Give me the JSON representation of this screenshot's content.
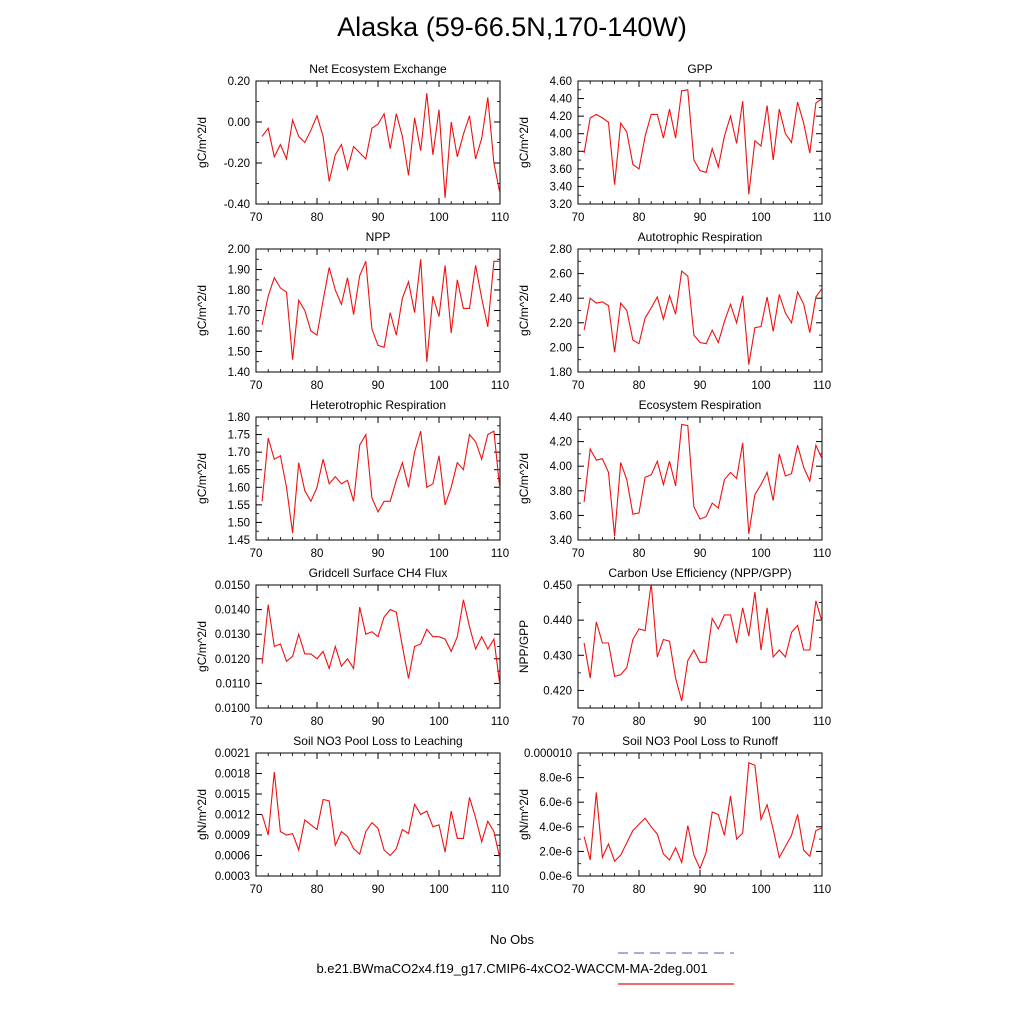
{
  "title": "Alaska (59-66.5N,170-140W)",
  "series_color": "#ee1111",
  "legend": {
    "obs_label": "No Obs",
    "obs_color": "#7777cc",
    "model_label": "b.e21.BWmaCO2x4.f19_g17.CMIP6-4xCO2-WACCM-MA-2deg.001",
    "model_color": "#ee1111"
  },
  "chart_data": [
    {
      "type": "line",
      "title": "Net Ecosystem Exchange",
      "ylabel": "gC/m^2/d",
      "xlim": [
        70,
        110
      ],
      "ylim": [
        -0.4,
        0.2
      ],
      "xticks": [
        70,
        80,
        90,
        100,
        110
      ],
      "xtick_labels": [
        "70",
        "80",
        "90",
        "100",
        "110"
      ],
      "yticks": [
        -0.4,
        -0.2,
        0.0,
        0.2
      ],
      "ytick_labels": [
        "-0.40",
        "-0.20",
        "0.00",
        "0.20"
      ],
      "x": [
        71,
        72,
        73,
        74,
        75,
        76,
        77,
        78,
        79,
        80,
        81,
        82,
        83,
        84,
        85,
        86,
        87,
        88,
        89,
        90,
        91,
        92,
        93,
        94,
        95,
        96,
        97,
        98,
        99,
        100,
        101,
        102,
        103,
        104,
        105,
        106,
        107,
        108,
        109,
        110
      ],
      "y": [
        -0.07,
        -0.03,
        -0.17,
        -0.11,
        -0.18,
        0.01,
        -0.07,
        -0.1,
        -0.04,
        0.03,
        -0.07,
        -0.29,
        -0.16,
        -0.11,
        -0.23,
        -0.12,
        -0.15,
        -0.18,
        -0.03,
        -0.01,
        0.04,
        -0.13,
        0.04,
        -0.07,
        -0.26,
        0.02,
        -0.14,
        0.14,
        -0.16,
        0.06,
        -0.37,
        0.0,
        -0.17,
        -0.06,
        0.03,
        -0.18,
        -0.08,
        0.12,
        -0.2,
        -0.35
      ]
    },
    {
      "type": "line",
      "title": "GPP",
      "ylabel": "gC/m^2/d",
      "xlim": [
        70,
        110
      ],
      "ylim": [
        3.2,
        4.6
      ],
      "xticks": [
        70,
        80,
        90,
        100,
        110
      ],
      "xtick_labels": [
        "70",
        "80",
        "90",
        "100",
        "110"
      ],
      "yticks": [
        3.2,
        3.4,
        3.6,
        3.8,
        4.0,
        4.2,
        4.4,
        4.6
      ],
      "ytick_labels": [
        "3.20",
        "3.40",
        "3.60",
        "3.80",
        "4.00",
        "4.20",
        "4.40",
        "4.60"
      ],
      "x": [
        71,
        72,
        73,
        74,
        75,
        76,
        77,
        78,
        79,
        80,
        81,
        82,
        83,
        84,
        85,
        86,
        87,
        88,
        89,
        90,
        91,
        92,
        93,
        94,
        95,
        96,
        97,
        98,
        99,
        100,
        101,
        102,
        103,
        104,
        105,
        106,
        107,
        108,
        109,
        110
      ],
      "y": [
        3.78,
        4.18,
        4.22,
        4.18,
        4.13,
        3.42,
        4.12,
        4.02,
        3.65,
        3.6,
        3.97,
        4.22,
        4.22,
        3.95,
        4.28,
        3.95,
        4.49,
        4.5,
        3.7,
        3.58,
        3.56,
        3.83,
        3.62,
        3.97,
        4.2,
        3.89,
        4.37,
        3.31,
        3.92,
        3.86,
        4.32,
        3.7,
        4.28,
        4.0,
        3.9,
        4.36,
        4.12,
        3.78,
        4.35,
        4.4
      ]
    },
    {
      "type": "line",
      "title": "NPP",
      "ylabel": "gC/m^2/d",
      "xlim": [
        70,
        110
      ],
      "ylim": [
        1.4,
        2.0
      ],
      "xticks": [
        70,
        80,
        90,
        100,
        110
      ],
      "xtick_labels": [
        "70",
        "80",
        "90",
        "100",
        "110"
      ],
      "yticks": [
        1.4,
        1.5,
        1.6,
        1.7,
        1.8,
        1.9,
        2.0
      ],
      "ytick_labels": [
        "1.40",
        "1.50",
        "1.60",
        "1.70",
        "1.80",
        "1.90",
        "2.00"
      ],
      "x": [
        71,
        72,
        73,
        74,
        75,
        76,
        77,
        78,
        79,
        80,
        81,
        82,
        83,
        84,
        85,
        86,
        87,
        88,
        89,
        90,
        91,
        92,
        93,
        94,
        95,
        96,
        97,
        98,
        99,
        100,
        101,
        102,
        103,
        104,
        105,
        106,
        107,
        108,
        109,
        110
      ],
      "y": [
        1.63,
        1.77,
        1.86,
        1.81,
        1.79,
        1.46,
        1.75,
        1.7,
        1.6,
        1.58,
        1.75,
        1.91,
        1.8,
        1.73,
        1.86,
        1.68,
        1.87,
        1.94,
        1.61,
        1.53,
        1.52,
        1.69,
        1.58,
        1.76,
        1.84,
        1.69,
        1.95,
        1.45,
        1.77,
        1.67,
        1.92,
        1.59,
        1.85,
        1.71,
        1.71,
        1.92,
        1.76,
        1.62,
        1.94,
        1.94
      ]
    },
    {
      "type": "line",
      "title": "Autotrophic Respiration",
      "ylabel": "gC/m^2/d",
      "xlim": [
        70,
        110
      ],
      "ylim": [
        1.8,
        2.8
      ],
      "xticks": [
        70,
        80,
        90,
        100,
        110
      ],
      "xtick_labels": [
        "70",
        "80",
        "90",
        "100",
        "110"
      ],
      "yticks": [
        1.8,
        2.0,
        2.2,
        2.4,
        2.6,
        2.8
      ],
      "ytick_labels": [
        "1.80",
        "2.00",
        "2.20",
        "2.40",
        "2.60",
        "2.80"
      ],
      "x": [
        71,
        72,
        73,
        74,
        75,
        76,
        77,
        78,
        79,
        80,
        81,
        82,
        83,
        84,
        85,
        86,
        87,
        88,
        89,
        90,
        91,
        92,
        93,
        94,
        95,
        96,
        97,
        98,
        99,
        100,
        101,
        102,
        103,
        104,
        105,
        106,
        107,
        108,
        109,
        110
      ],
      "y": [
        2.14,
        2.4,
        2.36,
        2.37,
        2.34,
        1.96,
        2.36,
        2.3,
        2.06,
        2.03,
        2.24,
        2.32,
        2.41,
        2.23,
        2.42,
        2.27,
        2.62,
        2.58,
        2.1,
        2.04,
        2.03,
        2.14,
        2.04,
        2.21,
        2.35,
        2.2,
        2.42,
        1.86,
        2.16,
        2.17,
        2.41,
        2.13,
        2.43,
        2.28,
        2.2,
        2.45,
        2.35,
        2.12,
        2.41,
        2.48
      ]
    },
    {
      "type": "line",
      "title": "Heterotrophic Respiration",
      "ylabel": "gC/m^2/d",
      "xlim": [
        70,
        110
      ],
      "ylim": [
        1.45,
        1.8
      ],
      "xticks": [
        70,
        80,
        90,
        100,
        110
      ],
      "xtick_labels": [
        "70",
        "80",
        "90",
        "100",
        "110"
      ],
      "yticks": [
        1.45,
        1.5,
        1.55,
        1.6,
        1.65,
        1.7,
        1.75,
        1.8
      ],
      "ytick_labels": [
        "1.45",
        "1.50",
        "1.55",
        "1.60",
        "1.65",
        "1.70",
        "1.75",
        "1.80"
      ],
      "x": [
        71,
        72,
        73,
        74,
        75,
        76,
        77,
        78,
        79,
        80,
        81,
        82,
        83,
        84,
        85,
        86,
        87,
        88,
        89,
        90,
        91,
        92,
        93,
        94,
        95,
        96,
        97,
        98,
        99,
        100,
        101,
        102,
        103,
        104,
        105,
        106,
        107,
        108,
        109,
        110
      ],
      "y": [
        1.56,
        1.74,
        1.68,
        1.69,
        1.6,
        1.47,
        1.67,
        1.59,
        1.56,
        1.6,
        1.68,
        1.61,
        1.63,
        1.61,
        1.62,
        1.56,
        1.72,
        1.75,
        1.57,
        1.53,
        1.56,
        1.56,
        1.62,
        1.67,
        1.6,
        1.7,
        1.76,
        1.6,
        1.61,
        1.69,
        1.55,
        1.6,
        1.67,
        1.65,
        1.75,
        1.73,
        1.68,
        1.75,
        1.76,
        1.59
      ]
    },
    {
      "type": "line",
      "title": "Ecosystem Respiration",
      "ylabel": "gC/m^2/d",
      "xlim": [
        70,
        110
      ],
      "ylim": [
        3.4,
        4.4
      ],
      "xticks": [
        70,
        80,
        90,
        100,
        110
      ],
      "xtick_labels": [
        "70",
        "80",
        "90",
        "100",
        "110"
      ],
      "yticks": [
        3.4,
        3.6,
        3.8,
        4.0,
        4.2,
        4.4
      ],
      "ytick_labels": [
        "3.40",
        "3.60",
        "3.80",
        "4.00",
        "4.20",
        "4.40"
      ],
      "x": [
        71,
        72,
        73,
        74,
        75,
        76,
        77,
        78,
        79,
        80,
        81,
        82,
        83,
        84,
        85,
        86,
        87,
        88,
        89,
        90,
        91,
        92,
        93,
        94,
        95,
        96,
        97,
        98,
        99,
        100,
        101,
        102,
        103,
        104,
        105,
        106,
        107,
        108,
        109,
        110
      ],
      "y": [
        3.71,
        4.14,
        4.05,
        4.06,
        3.95,
        3.43,
        4.03,
        3.89,
        3.61,
        3.62,
        3.91,
        3.93,
        4.04,
        3.85,
        4.04,
        3.84,
        4.34,
        4.33,
        3.67,
        3.57,
        3.59,
        3.7,
        3.66,
        3.89,
        3.95,
        3.9,
        4.19,
        3.45,
        3.77,
        3.85,
        3.95,
        3.72,
        4.1,
        3.92,
        3.94,
        4.17,
        3.99,
        3.88,
        4.17,
        4.06
      ]
    },
    {
      "type": "line",
      "title": "Gridcell Surface CH4 Flux",
      "ylabel": "gC/m^2/d",
      "xlim": [
        70,
        110
      ],
      "ylim": [
        0.01,
        0.015
      ],
      "xticks": [
        70,
        80,
        90,
        100,
        110
      ],
      "xtick_labels": [
        "70",
        "80",
        "90",
        "100",
        "110"
      ],
      "yticks": [
        0.01,
        0.011,
        0.012,
        0.013,
        0.014,
        0.015
      ],
      "ytick_labels": [
        "0.0100",
        "0.0110",
        "0.0120",
        "0.0130",
        "0.0140",
        "0.0150"
      ],
      "x": [
        71,
        72,
        73,
        74,
        75,
        76,
        77,
        78,
        79,
        80,
        81,
        82,
        83,
        84,
        85,
        86,
        87,
        88,
        89,
        90,
        91,
        92,
        93,
        94,
        95,
        96,
        97,
        98,
        99,
        100,
        101,
        102,
        103,
        104,
        105,
        106,
        107,
        108,
        109,
        110
      ],
      "y": [
        0.0118,
        0.0142,
        0.0125,
        0.0126,
        0.0119,
        0.0121,
        0.013,
        0.0122,
        0.0122,
        0.012,
        0.0123,
        0.0116,
        0.0125,
        0.0117,
        0.012,
        0.0116,
        0.0141,
        0.013,
        0.0131,
        0.0129,
        0.0137,
        0.014,
        0.0139,
        0.0125,
        0.0112,
        0.0125,
        0.0126,
        0.0132,
        0.0129,
        0.0129,
        0.0128,
        0.0123,
        0.0129,
        0.0144,
        0.0133,
        0.0124,
        0.0129,
        0.0124,
        0.0128,
        0.0109
      ]
    },
    {
      "type": "line",
      "title": "Carbon Use Efficiency (NPP/GPP)",
      "ylabel": "NPP/GPP",
      "xlim": [
        70,
        110
      ],
      "ylim": [
        0.415,
        0.45
      ],
      "xticks": [
        70,
        80,
        90,
        100,
        110
      ],
      "xtick_labels": [
        "70",
        "80",
        "90",
        "100",
        "110"
      ],
      "yticks": [
        0.42,
        0.43,
        0.44,
        0.45
      ],
      "ytick_labels": [
        "0.420",
        "0.430",
        "0.440",
        "0.450"
      ],
      "x": [
        71,
        72,
        73,
        74,
        75,
        76,
        77,
        78,
        79,
        80,
        81,
        82,
        83,
        84,
        85,
        86,
        87,
        88,
        89,
        90,
        91,
        92,
        93,
        94,
        95,
        96,
        97,
        98,
        99,
        100,
        101,
        102,
        103,
        104,
        105,
        106,
        107,
        108,
        109,
        110
      ],
      "y": [
        0.4335,
        0.4235,
        0.4395,
        0.4335,
        0.4335,
        0.424,
        0.4245,
        0.4265,
        0.4345,
        0.4375,
        0.437,
        0.4505,
        0.4295,
        0.4345,
        0.434,
        0.4235,
        0.417,
        0.4285,
        0.4315,
        0.428,
        0.428,
        0.4405,
        0.4375,
        0.4415,
        0.4415,
        0.4335,
        0.4435,
        0.4355,
        0.448,
        0.4315,
        0.4435,
        0.4295,
        0.4315,
        0.4295,
        0.4365,
        0.4385,
        0.4315,
        0.4315,
        0.4455,
        0.4395
      ]
    },
    {
      "type": "line",
      "title": "Soil NO3 Pool Loss to Leaching",
      "ylabel": "gN/m^2/d",
      "xlim": [
        70,
        110
      ],
      "ylim": [
        0.0003,
        0.0021
      ],
      "xticks": [
        70,
        80,
        90,
        100,
        110
      ],
      "xtick_labels": [
        "70",
        "80",
        "90",
        "100",
        "110"
      ],
      "yticks": [
        0.0003,
        0.0006,
        0.0009,
        0.0012,
        0.0015,
        0.0018,
        0.0021
      ],
      "ytick_labels": [
        "0.0003",
        "0.0006",
        "0.0009",
        "0.0012",
        "0.0015",
        "0.0018",
        "0.0021"
      ],
      "x": [
        71,
        72,
        73,
        74,
        75,
        76,
        77,
        78,
        79,
        80,
        81,
        82,
        83,
        84,
        85,
        86,
        87,
        88,
        89,
        90,
        91,
        92,
        93,
        94,
        95,
        96,
        97,
        98,
        99,
        100,
        101,
        102,
        103,
        104,
        105,
        106,
        107,
        108,
        109,
        110
      ],
      "y": [
        0.0012,
        0.0009,
        0.00182,
        0.00095,
        0.0009,
        0.00092,
        0.00068,
        0.00112,
        0.00105,
        0.00098,
        0.00142,
        0.0014,
        0.00075,
        0.00095,
        0.00088,
        0.0007,
        0.00062,
        0.00095,
        0.00108,
        0.001,
        0.00068,
        0.0006,
        0.0007,
        0.00098,
        0.00092,
        0.00135,
        0.0012,
        0.00125,
        0.00102,
        0.00105,
        0.00065,
        0.00125,
        0.00085,
        0.00085,
        0.00145,
        0.00115,
        0.0008,
        0.0011,
        0.00095,
        0.00055
      ]
    },
    {
      "type": "line",
      "title": "Soil NO3 Pool Loss to Runoff",
      "ylabel": "gN/m^2/d",
      "xlim": [
        70,
        110
      ],
      "ylim": [
        0.0,
        1e-05
      ],
      "xticks": [
        70,
        80,
        90,
        100,
        110
      ],
      "xtick_labels": [
        "70",
        "80",
        "90",
        "100",
        "110"
      ],
      "yticks": [
        0.0,
        2e-06,
        4e-06,
        6e-06,
        8e-06,
        1e-05
      ],
      "ytick_labels": [
        "0.0e-6",
        "2.0e-6",
        "4.0e-6",
        "6.0e-6",
        "8.0e-6",
        "0.000010"
      ],
      "x": [
        71,
        72,
        73,
        74,
        75,
        76,
        77,
        78,
        79,
        80,
        81,
        82,
        83,
        84,
        85,
        86,
        87,
        88,
        89,
        90,
        91,
        92,
        93,
        94,
        95,
        96,
        97,
        98,
        99,
        100,
        101,
        102,
        103,
        104,
        105,
        106,
        107,
        108,
        109,
        110
      ],
      "y": [
        3.2e-06,
        1.3e-06,
        6.8e-06,
        1.5e-06,
        2.6e-06,
        1.2e-06,
        1.7e-06,
        2.7e-06,
        3.7e-06,
        4.2e-06,
        4.7e-06,
        4e-06,
        3.4e-06,
        1.8e-06,
        1.3e-06,
        2.3e-06,
        1.1e-06,
        4.1e-06,
        1.7e-06,
        6e-07,
        1.9e-06,
        5.2e-06,
        5e-06,
        3.3e-06,
        6.5e-06,
        3e-06,
        3.5e-06,
        9.2e-06,
        9e-06,
        4.6e-06,
        5.8e-06,
        3.8e-06,
        1.5e-06,
        2.4e-06,
        3.3e-06,
        5e-06,
        2.1e-06,
        1.6e-06,
        3.7e-06,
        3.9e-06
      ]
    }
  ]
}
